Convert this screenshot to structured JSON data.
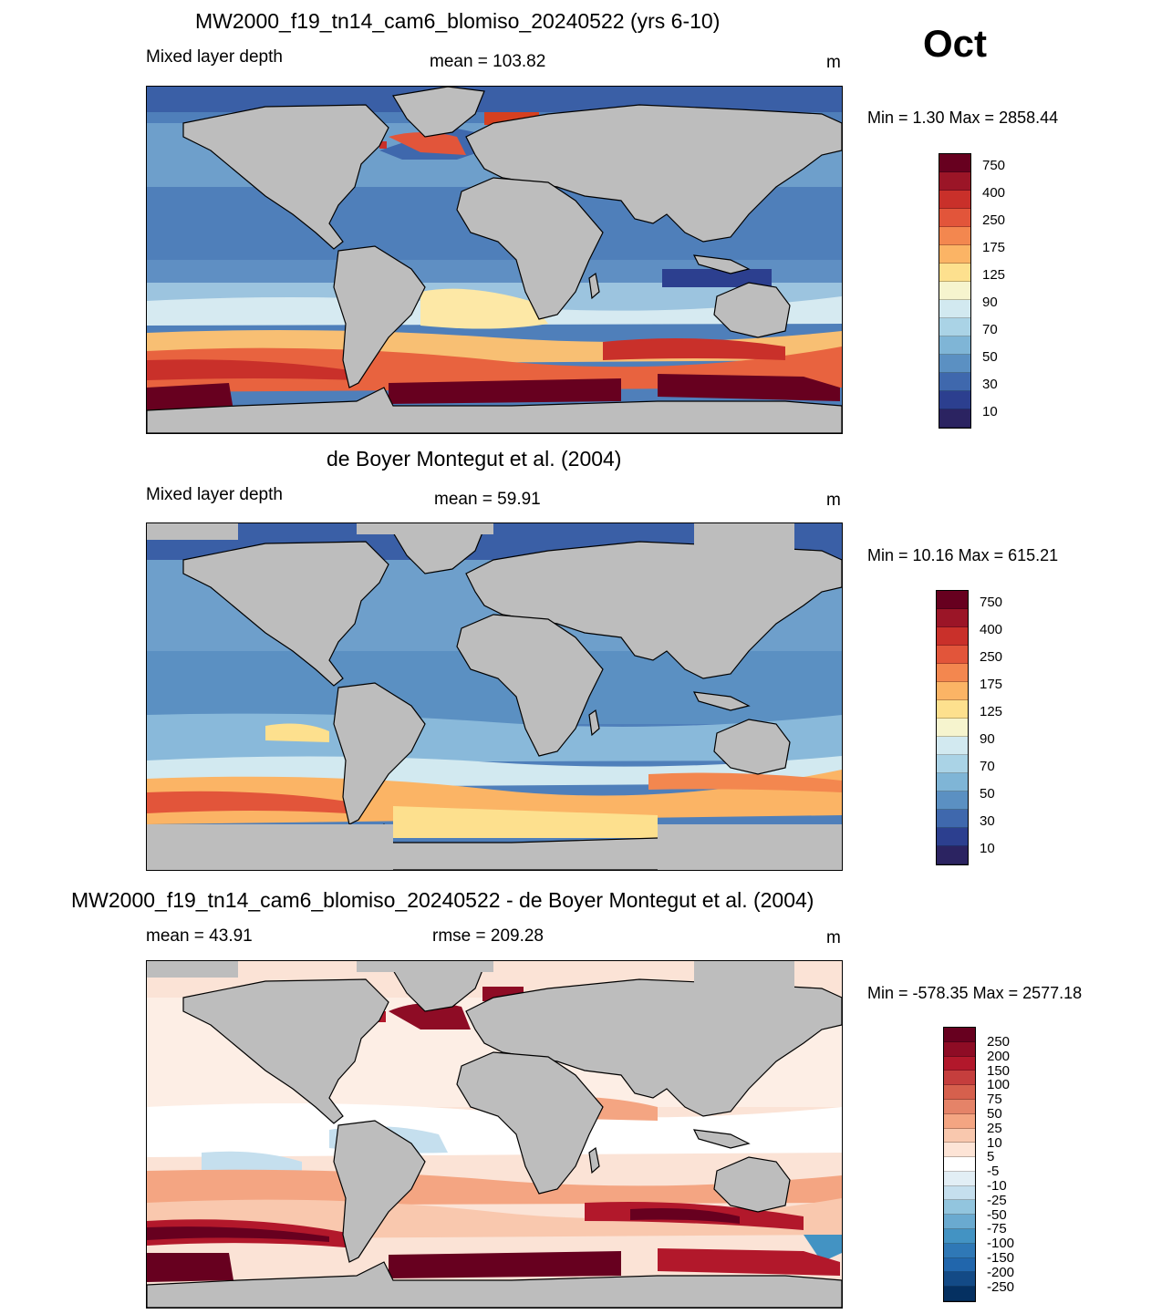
{
  "month": "Oct",
  "panels": [
    {
      "title": "MW2000_f19_tn14_cam6_blomiso_20240522 (yrs 6-10)",
      "left_label": "Mixed layer depth",
      "center_label": "mean = 103.82",
      "unit": "m",
      "minmax": "Min =   1.30 Max = 2858.44",
      "colorbar_labels": [
        "750",
        "400",
        "250",
        "175",
        "125",
        "90",
        "70",
        "50",
        "30",
        "10"
      ],
      "colorbar_colors": [
        "#67001f",
        "#9b1527",
        "#c9302a",
        "#e2553a",
        "#f3874f",
        "#fbb465",
        "#fde08e",
        "#f6f4ce",
        "#d2e9f0",
        "#aad3e6",
        "#7fb5d6",
        "#5b90c2",
        "#3f68ad",
        "#2c3f8f",
        "#2b2361"
      ]
    },
    {
      "title": "de Boyer Montegut et al. (2004)",
      "left_label": "Mixed layer depth",
      "center_label": "mean =  59.91",
      "unit": "m",
      "minmax": "Min =  10.16 Max = 615.21",
      "colorbar_labels": [
        "750",
        "400",
        "250",
        "175",
        "125",
        "90",
        "70",
        "50",
        "30",
        "10"
      ],
      "colorbar_colors": [
        "#67001f",
        "#9b1527",
        "#c9302a",
        "#e2553a",
        "#f3874f",
        "#fbb465",
        "#fde08e",
        "#f6f4ce",
        "#d2e9f0",
        "#aad3e6",
        "#7fb5d6",
        "#5b90c2",
        "#3f68ad",
        "#2c3f8f",
        "#2b2361"
      ]
    },
    {
      "title": "MW2000_f19_tn14_cam6_blomiso_20240522 - de Boyer Montegut et al. (2004)",
      "left_label": "mean =  43.91",
      "center_label": "rmse = 209.28",
      "unit": "m",
      "minmax": "Min = -578.35 Max = 2577.18",
      "colorbar_labels": [
        "250",
        "200",
        "150",
        "100",
        "75",
        "50",
        "25",
        "10",
        "5",
        "-5",
        "-10",
        "-25",
        "-50",
        "-75",
        "-100",
        "-150",
        "-200",
        "-250"
      ],
      "colorbar_colors": [
        "#67001f",
        "#8e0c25",
        "#b2182b",
        "#c53e3d",
        "#d6604d",
        "#e58368",
        "#f4a582",
        "#f9c8ae",
        "#fde4d6",
        "#ffffff",
        "#e2eef5",
        "#c5dfee",
        "#92c5de",
        "#6aaad0",
        "#4393c3",
        "#2f78b6",
        "#2166ac",
        "#134a86",
        "#053061"
      ]
    }
  ],
  "colors": {
    "land": "#bdbdbd",
    "coast": "#000000"
  }
}
